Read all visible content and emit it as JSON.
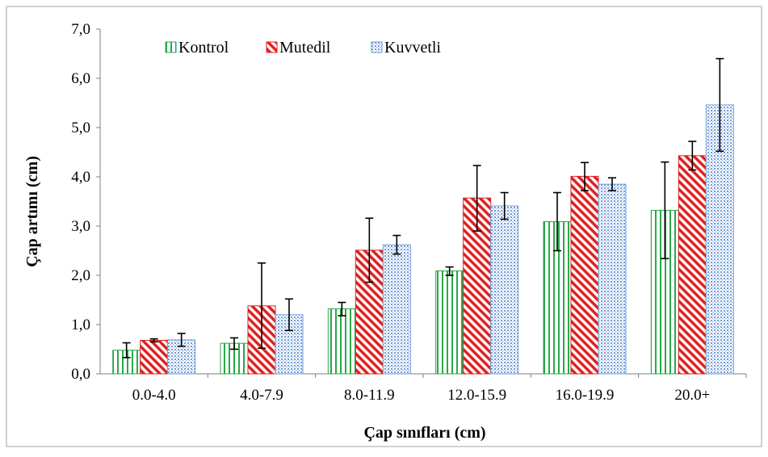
{
  "chart_data": {
    "type": "bar",
    "title": "",
    "xlabel": "Çap sınıfları (cm)",
    "ylabel": "Çap artımı (cm)",
    "categories": [
      "0.0-4.0",
      "4.0-7.9",
      "8.0-11.9",
      "12.0-15.9",
      "16.0-19.9",
      "20.0+"
    ],
    "ylim": [
      0,
      7
    ],
    "yticks": [
      "0,0",
      "1,0",
      "2,0",
      "3,0",
      "4,0",
      "5,0",
      "6,0",
      "7,0"
    ],
    "grid": false,
    "legend_position": "top-left",
    "series": [
      {
        "name": "Kontrol",
        "color": "#2aa84a",
        "pattern": "vertical-lines",
        "values": [
          0.48,
          0.62,
          1.32,
          2.09,
          3.09,
          3.32
        ],
        "error_low": [
          0.33,
          0.5,
          1.18,
          2.0,
          2.5,
          2.34
        ],
        "error_high": [
          0.63,
          0.73,
          1.45,
          2.17,
          3.68,
          4.3
        ]
      },
      {
        "name": "Mutedil",
        "color": "#e02020",
        "pattern": "diagonal-lines",
        "values": [
          0.68,
          1.38,
          2.51,
          3.57,
          4.01,
          4.43
        ],
        "error_low": [
          0.65,
          0.52,
          1.86,
          2.9,
          3.72,
          4.14
        ],
        "error_high": [
          0.71,
          2.25,
          3.16,
          4.23,
          4.29,
          4.72
        ]
      },
      {
        "name": "Kuvvetli",
        "color": "#6f9bd8",
        "pattern": "dots",
        "values": [
          0.69,
          1.2,
          2.62,
          3.41,
          3.85,
          5.46
        ],
        "error_low": [
          0.56,
          0.88,
          2.43,
          3.14,
          3.72,
          4.52
        ],
        "error_high": [
          0.82,
          1.52,
          2.81,
          3.68,
          3.98,
          6.4
        ]
      }
    ]
  }
}
